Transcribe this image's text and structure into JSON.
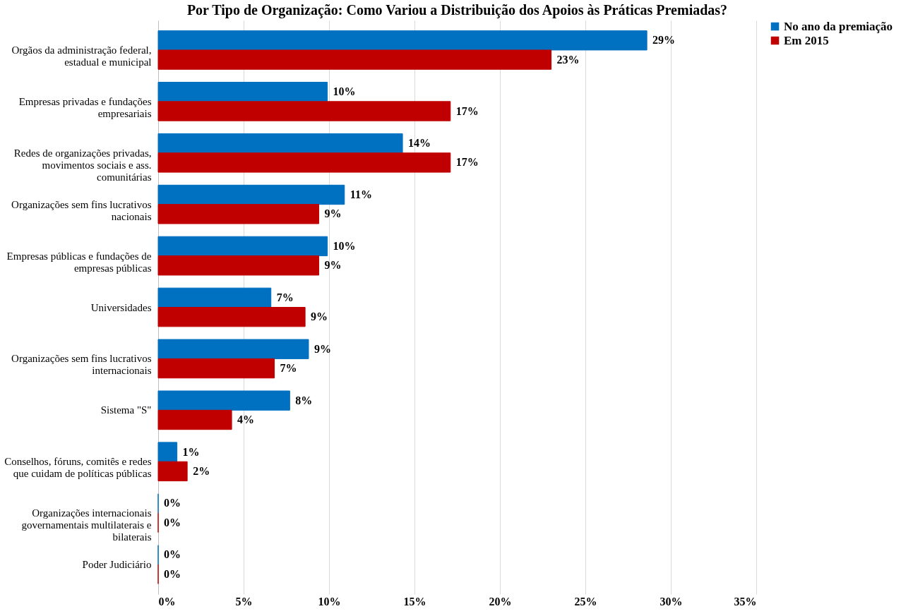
{
  "chart_data": {
    "type": "bar",
    "orientation": "horizontal",
    "title": "Por Tipo de Organização: Como Variou a Distribuição dos Apoios às Práticas Premiadas?",
    "categories": [
      "Orgãos da administração federal, estadual e municipal",
      "Empresas privadas e fundações empresariais",
      "Redes de organizações privadas, movimentos sociais e ass. comunitárias",
      "Organizações sem fins lucrativos nacionais",
      "Empresas públicas e fundações de empresas públicas",
      "Universidades",
      "Organizações sem fins lucrativos internacionais",
      "Sistema \"S\"",
      "Conselhos, fóruns, comitês e redes que cuidam de políticas públicas",
      "Organizações internacionais governamentais multilaterais e bilaterais",
      "Poder Judiciário"
    ],
    "series": [
      {
        "name": "No ano da premiação",
        "color": "#0070c0",
        "values": [
          28.6,
          9.9,
          14.3,
          10.9,
          9.9,
          6.6,
          8.8,
          7.7,
          1.1,
          0,
          0
        ],
        "value_labels": [
          "29%",
          "10%",
          "14%",
          "11%",
          "10%",
          "7%",
          "9%",
          "8%",
          "1%",
          "0%",
          "0%"
        ]
      },
      {
        "name": "Em 2015",
        "color": "#c00000",
        "values": [
          23.0,
          17.1,
          17.1,
          9.4,
          9.4,
          8.6,
          6.8,
          4.3,
          1.7,
          0,
          0
        ],
        "value_labels": [
          "23%",
          "17%",
          "17%",
          "9%",
          "9%",
          "9%",
          "7%",
          "4%",
          "2%",
          "0%",
          "0%"
        ]
      }
    ],
    "xlim": [
      0,
      35
    ],
    "xticks": [
      {
        "value": 0,
        "label": "0%"
      },
      {
        "value": 5,
        "label": "5%"
      },
      {
        "value": 10,
        "label": "10%"
      },
      {
        "value": 15,
        "label": "15%"
      },
      {
        "value": 20,
        "label": "20%"
      },
      {
        "value": 25,
        "label": "25%"
      },
      {
        "value": 30,
        "label": "30%"
      },
      {
        "value": 35,
        "label": "35%"
      }
    ],
    "grid": "x",
    "legend": "right"
  }
}
